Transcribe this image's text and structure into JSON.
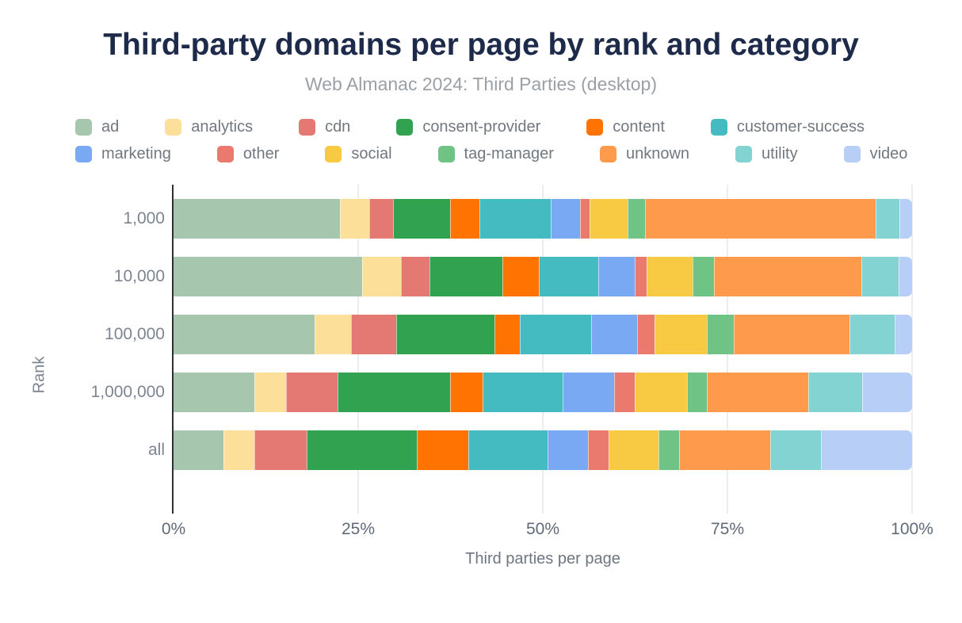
{
  "title": "Third-party domains per page by rank and category",
  "subtitle": "Web Almanac 2024: Third Parties (desktop)",
  "colors": {
    "title_text": "#1e2a49",
    "subtitle_text": "#9aa0a6",
    "legend_text": "#72787f",
    "axis_text": "#616b77",
    "axis_line": "#2e3033",
    "gridline": "#ecedef",
    "background": "#ffffff"
  },
  "legend": {
    "rows": [
      [
        "ad",
        "analytics",
        "cdn",
        "consent-provider",
        "content",
        "customer-success"
      ],
      [
        "marketing",
        "other",
        "social",
        "tag-manager",
        "unknown",
        "utility",
        "video"
      ]
    ]
  },
  "chart_data": {
    "type": "bar",
    "stacked": true,
    "orientation": "horizontal",
    "title": "Third-party domains per page by rank and category",
    "subtitle": "Web Almanac 2024: Third Parties (desktop)",
    "xlabel": "Third parties per page",
    "ylabel": "Rank",
    "units": "percent",
    "xlim": [
      0,
      100
    ],
    "grid": true,
    "legend_position": "top",
    "categories": [
      "1,000",
      "10,000",
      "100,000",
      "1,000,000",
      "all"
    ],
    "xticks": [
      {
        "label": "0%",
        "value": 0
      },
      {
        "label": "25%",
        "value": 25
      },
      {
        "label": "50%",
        "value": 50
      },
      {
        "label": "75%",
        "value": 75
      },
      {
        "label": "100%",
        "value": 100
      }
    ],
    "series": [
      {
        "name": "ad",
        "color": "#a6c7ad",
        "values": [
          22.5,
          25.5,
          19.1,
          10.9,
          6.8
        ]
      },
      {
        "name": "analytics",
        "color": "#fce09a",
        "values": [
          4.0,
          5.3,
          4.9,
          4.3,
          4.1
        ]
      },
      {
        "name": "cdn",
        "color": "#e47872",
        "values": [
          3.2,
          3.9,
          6.2,
          7.0,
          7.1
        ]
      },
      {
        "name": "consent-provider",
        "color": "#31a350",
        "values": [
          7.8,
          9.8,
          13.3,
          15.2,
          14.9
        ]
      },
      {
        "name": "content",
        "color": "#ff7302",
        "values": [
          3.9,
          5.0,
          3.4,
          4.4,
          7.0
        ]
      },
      {
        "name": "customer-success",
        "color": "#44bbc1",
        "values": [
          9.7,
          8.0,
          9.7,
          10.9,
          10.7
        ]
      },
      {
        "name": "marketing",
        "color": "#7aa9f4",
        "values": [
          4.0,
          4.9,
          6.2,
          7.0,
          5.5
        ]
      },
      {
        "name": "other",
        "color": "#eb7a6e",
        "values": [
          1.2,
          1.7,
          2.3,
          2.7,
          2.8
        ]
      },
      {
        "name": "social",
        "color": "#f8ca44",
        "values": [
          5.2,
          6.2,
          7.1,
          7.1,
          6.8
        ]
      },
      {
        "name": "tag-manager",
        "color": "#6fc384",
        "values": [
          2.4,
          2.9,
          3.7,
          2.7,
          2.8
        ]
      },
      {
        "name": "unknown",
        "color": "#fd9a4c",
        "values": [
          31.2,
          19.9,
          15.6,
          13.8,
          12.3
        ]
      },
      {
        "name": "utility",
        "color": "#82d3d1",
        "values": [
          3.2,
          5.1,
          6.1,
          7.2,
          6.9
        ]
      },
      {
        "name": "video",
        "color": "#b7cef7",
        "values": [
          1.7,
          1.8,
          2.4,
          6.8,
          12.3
        ]
      }
    ]
  }
}
